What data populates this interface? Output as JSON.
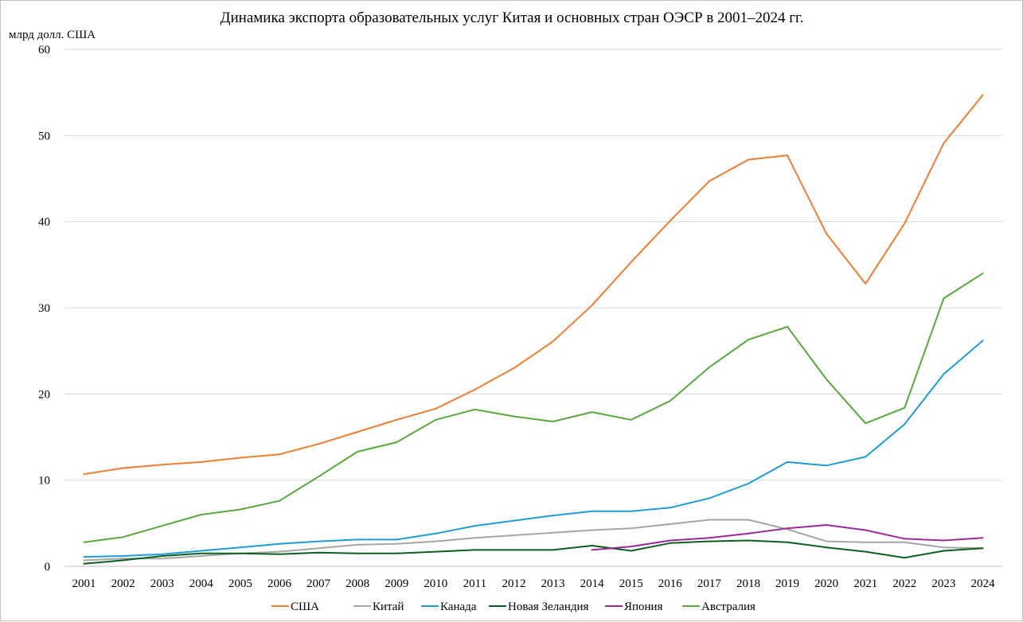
{
  "chart_data": {
    "type": "line",
    "title": "Динамика экспорта образовательных услуг Китая и основных стран ОЭСР в 2001–2024 гг.",
    "ylabel": "млрд долл. США",
    "xlabel": "",
    "ylim": [
      0,
      60
    ],
    "yticks": [
      0,
      10,
      20,
      30,
      40,
      50,
      60
    ],
    "grid": "horizontal",
    "legend": "bottom",
    "categories": [
      "2001",
      "2002",
      "2003",
      "2004",
      "2005",
      "2006",
      "2007",
      "2008",
      "2009",
      "2010",
      "2011",
      "2012",
      "2013",
      "2014",
      "2015",
      "2016",
      "2017",
      "2018",
      "2019",
      "2020",
      "2021",
      "2022",
      "2023",
      "2024"
    ],
    "series": [
      {
        "name": "США",
        "color": "#ed7d31",
        "values": [
          10.7,
          11.4,
          11.8,
          12.1,
          12.6,
          13.0,
          14.2,
          15.6,
          17.0,
          18.3,
          20.5,
          23.0,
          26.1,
          30.3,
          35.3,
          40.1,
          44.7,
          47.2,
          47.7,
          38.6,
          32.8,
          39.8,
          49.1,
          54.7
        ]
      },
      {
        "name": "Китай",
        "color": "#a5a5a5",
        "values": [
          0.7,
          0.9,
          0.9,
          1.2,
          1.5,
          1.7,
          2.1,
          2.5,
          2.6,
          2.9,
          3.3,
          3.6,
          3.9,
          4.2,
          4.4,
          4.9,
          5.4,
          5.4,
          4.3,
          2.9,
          2.8,
          2.8,
          2.2,
          2.1
        ]
      },
      {
        "name": "Канада",
        "color": "#1f9bd7",
        "values": [
          1.1,
          1.2,
          1.4,
          1.8,
          2.2,
          2.6,
          2.9,
          3.1,
          3.1,
          3.8,
          4.7,
          5.3,
          5.9,
          6.4,
          6.4,
          6.8,
          7.9,
          9.6,
          12.1,
          11.7,
          12.7,
          16.5,
          22.3,
          26.2
        ]
      },
      {
        "name": "Новая Зеландия",
        "color": "#0b5f1f",
        "values": [
          0.3,
          0.7,
          1.2,
          1.5,
          1.5,
          1.4,
          1.6,
          1.5,
          1.5,
          1.7,
          1.9,
          1.9,
          1.9,
          2.4,
          1.8,
          2.7,
          2.9,
          3.0,
          2.8,
          2.2,
          1.7,
          1.0,
          1.8,
          2.1
        ]
      },
      {
        "name": "Япония",
        "color": "#9a2a96",
        "values": [
          null,
          null,
          null,
          null,
          null,
          null,
          null,
          null,
          null,
          null,
          null,
          null,
          null,
          1.9,
          2.3,
          3.0,
          3.3,
          3.8,
          4.4,
          4.8,
          4.2,
          3.2,
          3.0,
          3.3
        ]
      },
      {
        "name": "Австралия",
        "color": "#56a93a",
        "values": [
          2.8,
          3.4,
          4.7,
          6.0,
          6.6,
          7.6,
          10.4,
          13.3,
          14.4,
          17.0,
          18.2,
          17.4,
          16.8,
          17.9,
          17.0,
          19.2,
          23.1,
          26.3,
          27.8,
          21.7,
          16.6,
          18.4,
          31.1,
          34.0
        ]
      }
    ]
  }
}
